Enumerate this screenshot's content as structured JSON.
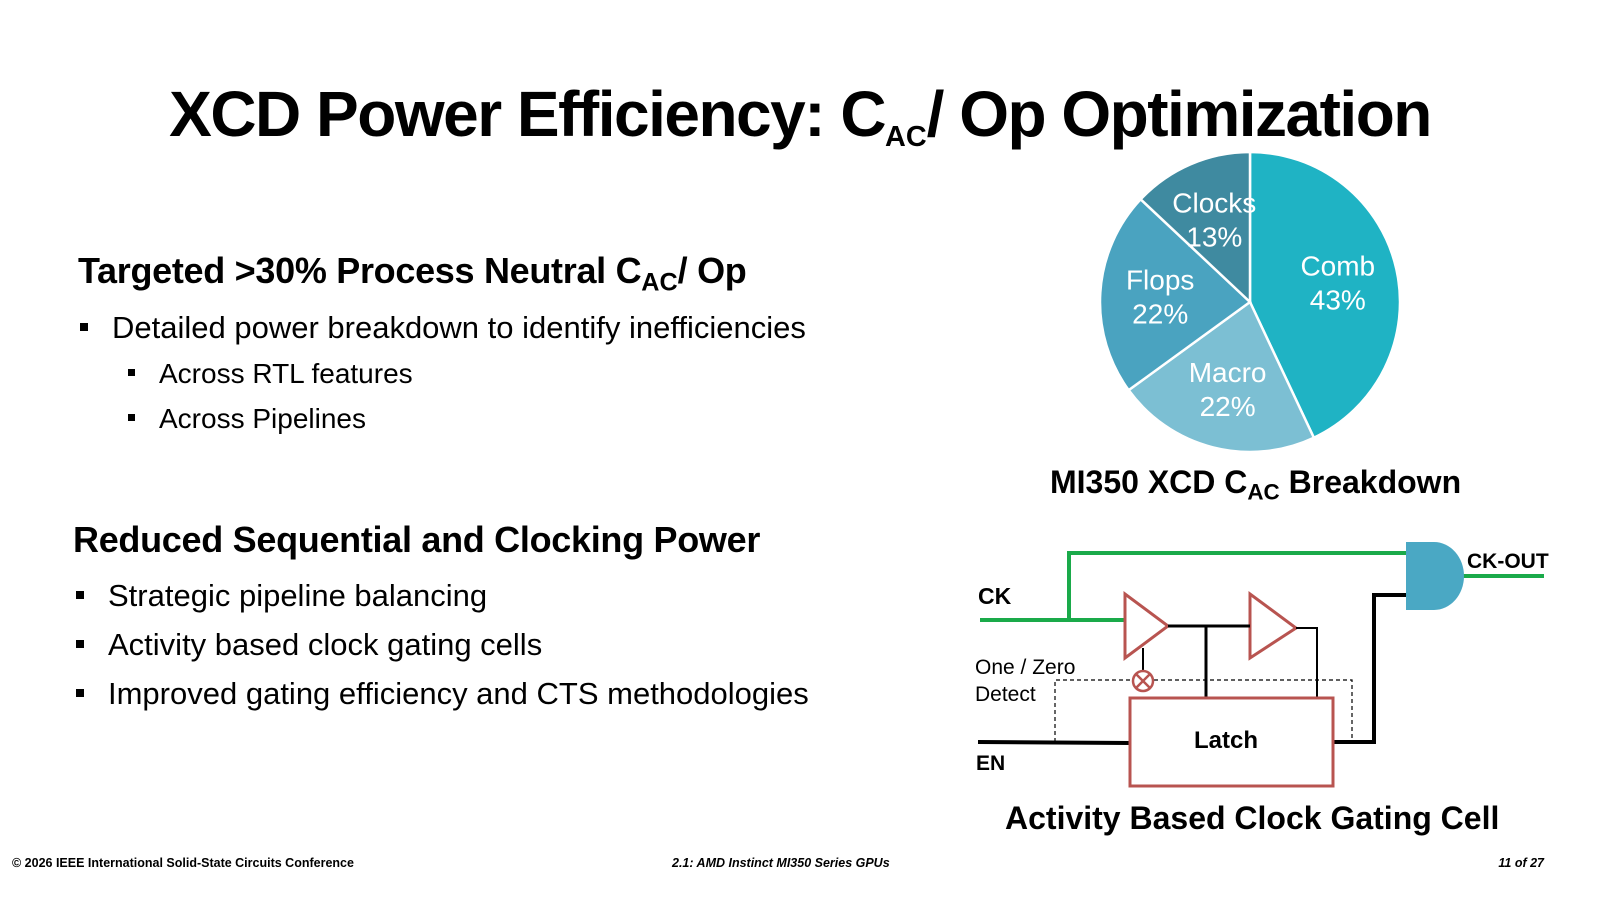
{
  "slide": {
    "title_main": "XCD Power Efficiency: C",
    "title_sub": "AC",
    "title_tail": "/ Op Optimization"
  },
  "section1": {
    "heading_main": "Targeted >30% Process Neutral C",
    "heading_sub": "AC",
    "heading_tail": "/ Op",
    "bullets": [
      "Detailed power breakdown to identify inefficiencies",
      "Across RTL features",
      "Across Pipelines"
    ]
  },
  "section2": {
    "heading": "Reduced Sequential and Clocking Power",
    "bullets": [
      "Strategic pipeline balancing",
      "Activity based clock gating cells",
      "Improved gating efficiency and CTS methodologies"
    ]
  },
  "chart_data": {
    "type": "pie",
    "title_main": "MI350 XCD C",
    "title_sub": "AC",
    "title_tail": " Breakdown",
    "slices": [
      {
        "label": "Comb",
        "value": 43,
        "value_label": "43%",
        "color": "#1fb3c4"
      },
      {
        "label": "Macro",
        "value": 22,
        "value_label": "22%",
        "color": "#7cbfd3"
      },
      {
        "label": "Flops",
        "value": 22,
        "value_label": "22%",
        "color": "#4aa3c0"
      },
      {
        "label": "Clocks",
        "value": 13,
        "value_label": "13%",
        "color": "#3f8aa0"
      }
    ]
  },
  "circuit": {
    "caption": "Activity Based Clock Gating Cell",
    "ck_label": "CK",
    "ck_out_label": "CK-OUT",
    "en_label": "EN",
    "detect_line1": "One / Zero",
    "detect_line2": "Detect",
    "latch_label": "Latch",
    "colors": {
      "clock_wire": "#1aaa4a",
      "buffer": "#b85450",
      "gate": "#4aa8c4"
    }
  },
  "footer": {
    "left": "© 2026 IEEE International Solid-State Circuits Conference",
    "center": "2.1: AMD Instinct MI350 Series GPUs",
    "right": "11 of 27"
  }
}
